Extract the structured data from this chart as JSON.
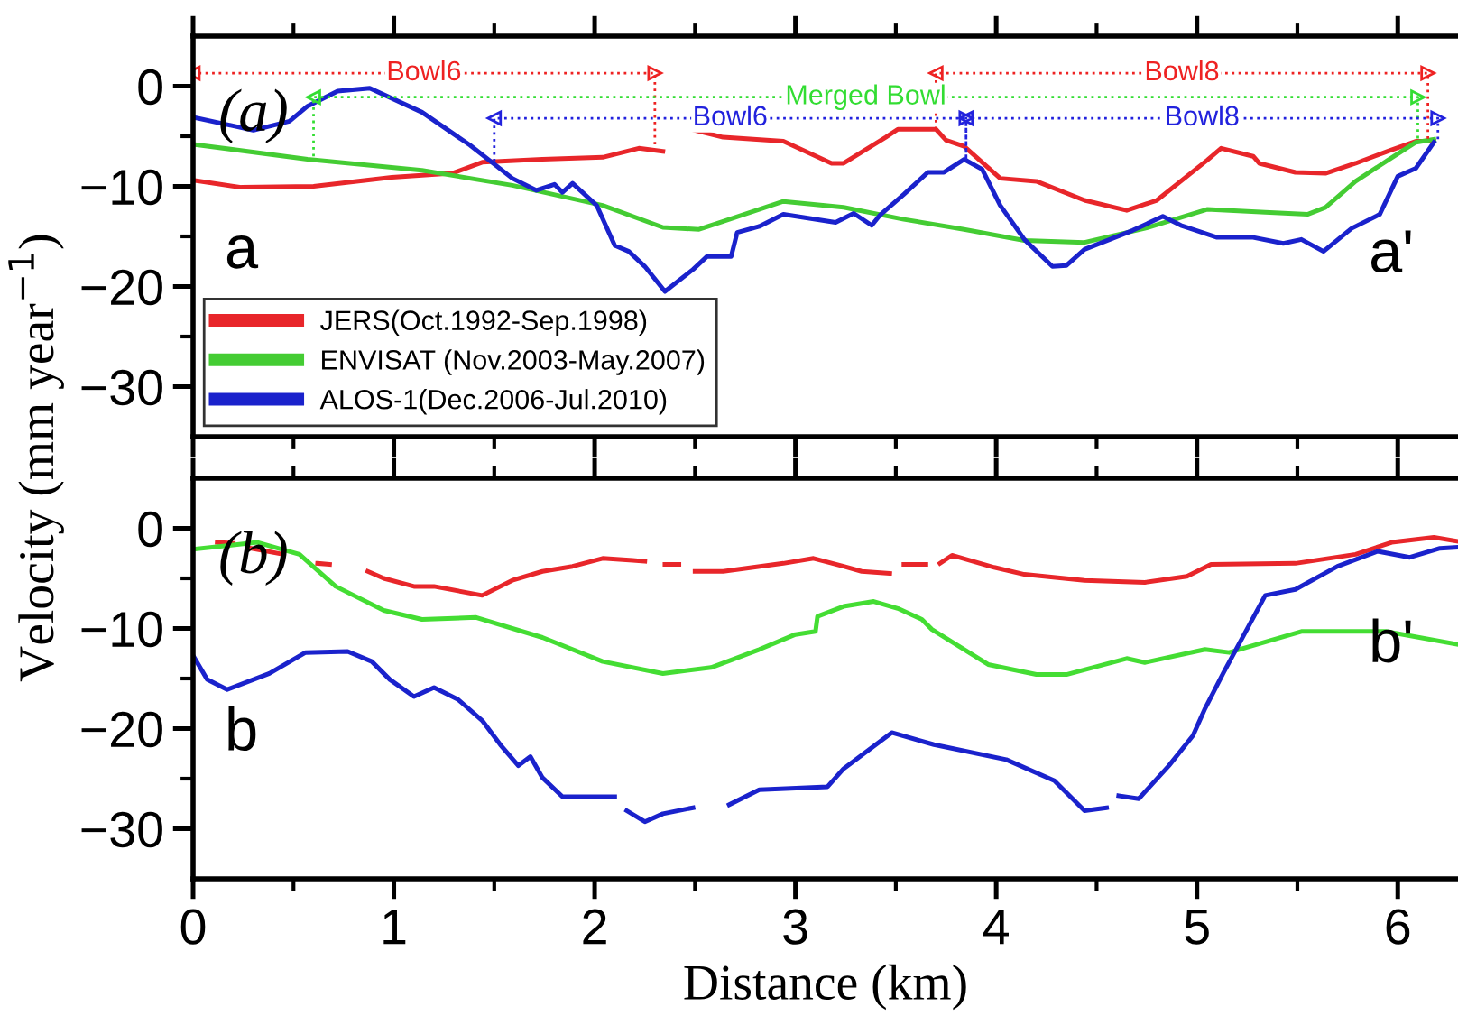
{
  "chart_data": [
    {
      "type": "line",
      "ylabel": "Velocity (mm year$^{−1}$)",
      "xlim": [
        0,
        6.3
      ],
      "ylim": [
        -35,
        5
      ],
      "xticks": [
        0,
        1,
        2,
        3,
        4,
        5,
        6
      ],
      "yticks": [
        0,
        -10,
        -20,
        -30
      ],
      "tick_labels": "y",
      "legend": "bottom left",
      "line_style": "solid",
      "annotations": [
        "(a)",
        "a",
        "a'"
      ],
      "series": [
        {
          "name": "JERS(Oct.1992-Sep.1998)",
          "color": "#e8262a",
          "x": [
            0,
            0.24,
            0.6,
            0.99,
            1.29,
            1.44,
            1.74,
            2.04,
            2.22,
            2.34,
            2.42,
            2.5,
            2.64,
            2.94,
            3.18,
            3.24,
            3.45,
            3.51,
            3.7,
            3.75,
            3.84,
            4.02,
            4.2,
            4.44,
            4.65,
            4.8,
            5.05,
            5.12,
            5.28,
            5.31,
            5.49,
            5.64,
            5.79,
            5.95,
            6.09,
            6.18
          ],
          "values": [
            -9.4,
            -10.1,
            -10,
            -9.1,
            -8.7,
            -7.6,
            -7.3,
            -7.1,
            -6.2,
            -6.5,
            null,
            -4.4,
            -5.1,
            -5.5,
            -7.7,
            -7.7,
            -5.1,
            -4.3,
            -4.3,
            -5.4,
            -6,
            -9.2,
            -9.5,
            -11.4,
            -12.4,
            -11.4,
            -7.4,
            -6.2,
            -7,
            -7.7,
            -8.6,
            -8.7,
            -7.7,
            -6.5,
            -5.5,
            -5.5
          ]
        },
        {
          "name": "ENVISAT (Nov.2003-May.2007)",
          "color": "#44cc33",
          "x": [
            0,
            0.57,
            1.14,
            1.59,
            2.04,
            2.34,
            2.52,
            2.64,
            2.94,
            3.24,
            3.54,
            3.84,
            4.14,
            4.44,
            4.74,
            5.05,
            5.34,
            5.55,
            5.64,
            5.79,
            5.95,
            6.09,
            6.18
          ],
          "values": [
            -5.8,
            -7.3,
            -8.4,
            -9.9,
            -11.9,
            -14.1,
            -14.3,
            -13.5,
            -11.5,
            -12.1,
            -13.3,
            -14.3,
            -15.4,
            -15.6,
            -14.2,
            -12.3,
            -12.6,
            -12.8,
            -12.1,
            -9.5,
            -7.4,
            -5.6,
            -5.3
          ]
        },
        {
          "name": "ALOS-1(Dec.2006-Jul.2010)",
          "color": "#1a22cc",
          "x": [
            0,
            0.3,
            0.48,
            0.57,
            0.72,
            0.88,
            1.14,
            1.38,
            1.59,
            1.71,
            1.8,
            1.84,
            1.89,
            2.01,
            2.1,
            2.17,
            2.25,
            2.35,
            2.49,
            2.56,
            2.68,
            2.71,
            2.82,
            2.94,
            3.2,
            3.29,
            3.38,
            3.42,
            3.54,
            3.66,
            3.74,
            3.84,
            3.93,
            4.02,
            4.14,
            4.28,
            4.35,
            4.44,
            4.68,
            4.83,
            4.92,
            5.1,
            5.28,
            5.43,
            5.52,
            5.63,
            5.77,
            5.91,
            6.0,
            6.09,
            6.18
          ],
          "values": [
            -3.1,
            -4.4,
            -3.5,
            -2,
            -0.5,
            -0.2,
            -2.6,
            -5.9,
            -9.2,
            -10.4,
            -9.8,
            -10.6,
            -9.7,
            -11.9,
            -15.9,
            -16.5,
            -18,
            -20.5,
            -18.3,
            -17,
            -17,
            -14.6,
            -14,
            -12.8,
            -13.6,
            -12.7,
            -13.9,
            -12.9,
            -10.8,
            -8.6,
            -8.6,
            -7.3,
            -8.3,
            -11.9,
            -15.3,
            -18,
            -17.9,
            -16.3,
            -14.4,
            -13,
            -13.9,
            -15.1,
            -15.1,
            -15.7,
            -15.3,
            -16.5,
            -14.2,
            -12.8,
            -9,
            -8.2,
            -5.6
          ]
        },
        {
          "name": "Bowl6",
          "color": "#ee2222",
          "line_style": "dotted",
          "x": [
            0,
            0,
            2.3,
            2.3
          ],
          "values": [
            -9.4,
            1.3,
            1.3,
            -5.8
          ]
        },
        {
          "name": "Merged Bowl",
          "color": "#33dd33",
          "line_style": "dotted",
          "x": [
            0.6,
            0.6,
            6.1,
            6.1
          ],
          "values": [
            -7,
            -1.1,
            -1.1,
            -5.5
          ]
        },
        {
          "name": "Bowl6",
          "color": "#2222dd",
          "line_style": "dotted",
          "x": [
            1.5,
            1.5,
            3.85,
            3.85
          ],
          "values": [
            -7.5,
            -3.2,
            -3.2,
            -7.3
          ]
        },
        {
          "name": "Bowl8",
          "color": "#ee2222",
          "line_style": "dotted",
          "x": [
            3.7,
            3.7,
            6.15,
            6.15
          ],
          "values": [
            -4.3,
            1.3,
            1.3,
            -5.5
          ]
        },
        {
          "name": "Bowl8",
          "color": "#2222dd",
          "line_style": "dotted",
          "x": [
            3.85,
            3.85,
            6.2,
            6.2
          ],
          "values": [
            -7.3,
            -3.2,
            -3.2,
            -5.6
          ]
        }
      ]
    },
    {
      "type": "line",
      "xlabel": "Distance (km)",
      "xlim": [
        0,
        6.3
      ],
      "ylim": [
        -35,
        5
      ],
      "xticks": [
        0,
        1,
        2,
        3,
        4,
        5,
        6
      ],
      "yticks": [
        0,
        -10,
        -20,
        -30
      ],
      "line_style": "solid",
      "annotations": [
        "(b)",
        "b",
        "b'"
      ],
      "series": [
        {
          "color": "#e8262a",
          "x": [
            0.12,
            0.2,
            0.22,
            0.29,
            0.45,
            0.5,
            0.62,
            0.68,
            0.7,
            0.87,
            0.95,
            1.1,
            1.2,
            1.44,
            1.59,
            1.74,
            1.89,
            2.04,
            2.19,
            2.25,
            2.29,
            2.35,
            2.42,
            2.46,
            2.5,
            2.64,
            2.94,
            3.09,
            3.24,
            3.33,
            3.47,
            3.5,
            3.54,
            3.65,
            3.68,
            3.72,
            3.78,
            3.99,
            4.14,
            4.44,
            4.74,
            4.95,
            5.07,
            5.49,
            5.79,
            5.97,
            6.18,
            6.3
          ],
          "values": [
            -1.4,
            -1.5,
            null,
            -2,
            -2.6,
            null,
            -3.5,
            -3.6,
            null,
            -4.3,
            -5,
            -5.8,
            -5.8,
            -6.7,
            -5.2,
            -4.3,
            -3.8,
            -3,
            -3.2,
            -3.3,
            null,
            -3.6,
            -3.6,
            null,
            -4.3,
            -4.3,
            -3.5,
            -3,
            -3.8,
            -4.3,
            -4.5,
            null,
            -3.6,
            -3.6,
            null,
            -3.5,
            -2.7,
            -3.9,
            -4.6,
            -5.2,
            -5.4,
            -4.8,
            -3.6,
            -3.5,
            -2.6,
            -1.4,
            -0.9,
            -1.3
          ]
        },
        {
          "color": "#44dd33",
          "x": [
            0,
            0.32,
            0.53,
            0.71,
            0.95,
            1.14,
            1.41,
            1.74,
            2.04,
            2.34,
            2.58,
            2.82,
            3.0,
            3.1,
            3.11,
            3.24,
            3.39,
            3.51,
            3.63,
            3.68,
            3.96,
            4.2,
            4.35,
            4.65,
            4.74,
            5.04,
            5.16,
            5.52,
            5.94,
            6.3
          ],
          "values": [
            -2.1,
            -1.4,
            -2.6,
            -5.8,
            -8.2,
            -9.1,
            -8.9,
            -10.9,
            -13.3,
            -14.5,
            -13.9,
            -12.1,
            -10.6,
            -10.3,
            -8.8,
            -7.8,
            -7.3,
            -8,
            -9.1,
            -10.1,
            -13.6,
            -14.6,
            -14.6,
            -13,
            -13.4,
            -12.1,
            -12.4,
            -10.3,
            -10.3,
            -11.6
          ]
        },
        {
          "color": "#1a22cc",
          "x": [
            0,
            0.07,
            0.17,
            0.38,
            0.56,
            0.77,
            0.89,
            0.98,
            1.1,
            1.2,
            1.32,
            1.44,
            1.53,
            1.62,
            1.68,
            1.74,
            1.84,
            2.1,
            2.13,
            2.16,
            2.25,
            2.34,
            2.49,
            2.58,
            2.67,
            2.82,
            3.16,
            3.24,
            3.48,
            3.69,
            4.05,
            4.29,
            4.44,
            4.55,
            4.58,
            4.61,
            4.71,
            4.86,
            4.98,
            5.04,
            5.13,
            5.34,
            5.49,
            5.7,
            5.9,
            6.06,
            6.21,
            6.3
          ],
          "values": [
            -12.7,
            -15.1,
            -16.1,
            -14.5,
            -12.4,
            -12.3,
            -13.3,
            -15.1,
            -16.8,
            -15.9,
            -17.1,
            -19.2,
            -21.6,
            -23.7,
            -22.8,
            -24.9,
            -26.8,
            -26.8,
            null,
            -28.2,
            -29.3,
            -28.5,
            -27.9,
            null,
            -27.6,
            -26.1,
            -25.8,
            -24,
            -20.4,
            -21.6,
            -23.1,
            -25.2,
            -28.2,
            -27.9,
            null,
            -26.7,
            -27,
            -23.7,
            -20.7,
            -18,
            -14.5,
            -6.7,
            -6.1,
            -3.8,
            -2.3,
            -2.9,
            -2,
            -1.9
          ]
        }
      ]
    }
  ]
}
